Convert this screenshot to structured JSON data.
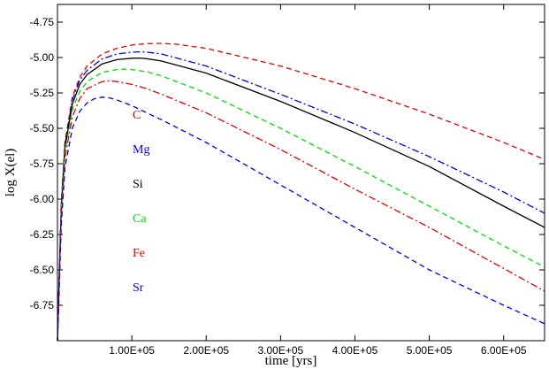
{
  "chart_data": {
    "type": "line",
    "title": "",
    "xlabel": "time [yrs]",
    "ylabel": "log X(el)",
    "xlim": [
      0,
      655000
    ],
    "ylim": [
      -7.0,
      -4.625
    ],
    "grid": false,
    "x_ticks": [
      {
        "value": 100000,
        "label": "1.00E+05"
      },
      {
        "value": 200000,
        "label": "2.00E+05"
      },
      {
        "value": 300000,
        "label": "3.00E+05"
      },
      {
        "value": 400000,
        "label": "4.00E+05"
      },
      {
        "value": 500000,
        "label": "5.00E+05"
      },
      {
        "value": 600000,
        "label": "6.00E+05"
      }
    ],
    "y_ticks": [
      {
        "value": -4.75,
        "label": "-4.75"
      },
      {
        "value": -5.0,
        "label": "-5.00"
      },
      {
        "value": -5.25,
        "label": "-5.25"
      },
      {
        "value": -5.5,
        "label": "-5.50"
      },
      {
        "value": -5.75,
        "label": "-5.75"
      },
      {
        "value": -6.0,
        "label": "-6.00"
      },
      {
        "value": -6.25,
        "label": "-6.25"
      },
      {
        "value": -6.5,
        "label": "-6.50"
      },
      {
        "value": -6.75,
        "label": "-6.75"
      }
    ],
    "series": [
      {
        "name": "C",
        "color": "#e00000",
        "dash": "dashed",
        "x": [
          0,
          2000,
          5000,
          10000,
          20000,
          30000,
          40000,
          60000,
          80000,
          100000,
          120000,
          140000,
          160000,
          200000,
          300000,
          400000,
          500000,
          600000,
          655000
        ],
        "y": [
          -7.0,
          -6.6,
          -6.05,
          -5.6,
          -5.28,
          -5.14,
          -5.06,
          -4.975,
          -4.935,
          -4.912,
          -4.902,
          -4.9,
          -4.906,
          -4.935,
          -5.06,
          -5.22,
          -5.4,
          -5.6,
          -5.72
        ]
      },
      {
        "name": "Mg",
        "color": "#0000e0",
        "dash": "dashdot",
        "x": [
          0,
          2000,
          5000,
          10000,
          20000,
          30000,
          40000,
          60000,
          80000,
          100000,
          110000,
          120000,
          140000,
          200000,
          300000,
          400000,
          500000,
          600000,
          655000
        ],
        "y": [
          -7.0,
          -6.6,
          -6.05,
          -5.62,
          -5.3,
          -5.16,
          -5.09,
          -5.01,
          -4.975,
          -4.962,
          -4.96,
          -4.962,
          -4.975,
          -5.06,
          -5.26,
          -5.47,
          -5.7,
          -5.95,
          -6.1
        ]
      },
      {
        "name": "Si",
        "color": "#000000",
        "dash": "solid",
        "x": [
          0,
          2000,
          5000,
          10000,
          20000,
          30000,
          40000,
          60000,
          80000,
          100000,
          110000,
          120000,
          140000,
          200000,
          300000,
          400000,
          500000,
          600000,
          655000
        ],
        "y": [
          -7.0,
          -6.62,
          -6.08,
          -5.64,
          -5.33,
          -5.19,
          -5.12,
          -5.045,
          -5.015,
          -5.005,
          -5.004,
          -5.008,
          -5.025,
          -5.11,
          -5.31,
          -5.53,
          -5.77,
          -6.05,
          -6.2
        ]
      },
      {
        "name": "Ca",
        "color": "#00dd00",
        "dash": "dashed",
        "x": [
          0,
          2000,
          5000,
          10000,
          20000,
          30000,
          40000,
          60000,
          80000,
          90000,
          100000,
          120000,
          140000,
          200000,
          300000,
          400000,
          500000,
          600000,
          655000
        ],
        "y": [
          -7.0,
          -6.64,
          -6.1,
          -5.67,
          -5.37,
          -5.24,
          -5.17,
          -5.105,
          -5.085,
          -5.082,
          -5.085,
          -5.1,
          -5.13,
          -5.25,
          -5.5,
          -5.77,
          -6.05,
          -6.33,
          -6.48
        ]
      },
      {
        "name": "Fe",
        "color": "#e00000",
        "dash": "dashdot",
        "x": [
          0,
          2000,
          5000,
          10000,
          20000,
          30000,
          40000,
          60000,
          70000,
          80000,
          100000,
          120000,
          140000,
          200000,
          300000,
          400000,
          500000,
          600000,
          655000
        ],
        "y": [
          -7.0,
          -6.66,
          -6.13,
          -5.71,
          -5.42,
          -5.29,
          -5.22,
          -5.17,
          -5.165,
          -5.17,
          -5.19,
          -5.22,
          -5.26,
          -5.39,
          -5.65,
          -5.93,
          -6.2,
          -6.49,
          -6.65
        ]
      },
      {
        "name": "Sr",
        "color": "#0000e0",
        "dash": "dashed",
        "x": [
          0,
          2000,
          5000,
          10000,
          20000,
          30000,
          40000,
          50000,
          60000,
          70000,
          80000,
          100000,
          120000,
          140000,
          200000,
          300000,
          400000,
          500000,
          600000,
          655000
        ],
        "y": [
          -7.0,
          -6.7,
          -6.2,
          -5.78,
          -5.5,
          -5.38,
          -5.32,
          -5.29,
          -5.28,
          -5.285,
          -5.3,
          -5.34,
          -5.39,
          -5.44,
          -5.6,
          -5.9,
          -6.2,
          -6.5,
          -6.75,
          -6.88
        ]
      }
    ]
  }
}
